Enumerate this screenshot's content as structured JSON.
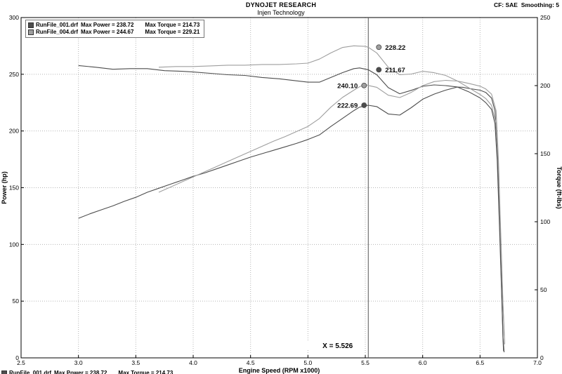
{
  "header": {
    "title": "DYNOJET RESEARCH",
    "subtitle": "Injen Technology",
    "correction": "CF: SAE  Smoothing: 5"
  },
  "legend": {
    "entries": [
      {
        "file": "RunFile_001.drf",
        "max_power_label": "Max Power = 238.72",
        "max_torque_label": "Max Torque = 214.73",
        "color": "#4d4d4d"
      },
      {
        "file": "RunFile_004.drf",
        "max_power_label": "Max Power = 244.67",
        "max_torque_label": "Max Torque = 229.21",
        "color": "#9e9e9e"
      }
    ]
  },
  "chart_data": {
    "type": "line",
    "title": "DYNOJET RESEARCH",
    "subtitle": "Injen Technology",
    "xlabel": "Engine Speed (RPM x1000)",
    "ylabel_left": "Power (hp)",
    "ylabel_right": "Torque (ft-lbs)",
    "xlim": [
      2.5,
      7.0
    ],
    "ylim_left": [
      0,
      300
    ],
    "ylim_right": [
      0,
      250
    ],
    "xticks": [
      2.5,
      3.0,
      3.5,
      4.0,
      4.5,
      5.0,
      5.5,
      6.0,
      6.5,
      7.0
    ],
    "yticks_left": [
      0,
      50,
      100,
      150,
      200,
      250,
      300
    ],
    "yticks_right": [
      0,
      50,
      100,
      150,
      200,
      250
    ],
    "grid": "dotted",
    "cursor_x": 5.526,
    "cursor_label": "X = 5.526",
    "series": [
      {
        "id": "power-001",
        "name": "RunFile_001.drf Power",
        "axis": "left",
        "color": "#4d4d4d",
        "points": [
          [
            3.0,
            123
          ],
          [
            3.1,
            127
          ],
          [
            3.2,
            130.5
          ],
          [
            3.3,
            134
          ],
          [
            3.4,
            138
          ],
          [
            3.5,
            141.5
          ],
          [
            3.6,
            146
          ],
          [
            3.7,
            149.5
          ],
          [
            3.8,
            153
          ],
          [
            3.9,
            156.5
          ],
          [
            4.0,
            160
          ],
          [
            4.1,
            163
          ],
          [
            4.2,
            166.5
          ],
          [
            4.3,
            170
          ],
          [
            4.4,
            173.5
          ],
          [
            4.5,
            177
          ],
          [
            4.6,
            180
          ],
          [
            4.7,
            183
          ],
          [
            4.8,
            186
          ],
          [
            4.9,
            189
          ],
          [
            5.0,
            192.5
          ],
          [
            5.1,
            196.5
          ],
          [
            5.2,
            204
          ],
          [
            5.3,
            211
          ],
          [
            5.4,
            218
          ],
          [
            5.45,
            221
          ],
          [
            5.526,
            222.69
          ],
          [
            5.6,
            221.5
          ],
          [
            5.7,
            215
          ],
          [
            5.8,
            214
          ],
          [
            5.9,
            220.5
          ],
          [
            6.0,
            228
          ],
          [
            6.1,
            232.5
          ],
          [
            6.2,
            236
          ],
          [
            6.3,
            238.72
          ],
          [
            6.35,
            238.5
          ],
          [
            6.4,
            237.5
          ],
          [
            6.5,
            236
          ],
          [
            6.55,
            234
          ],
          [
            6.6,
            229
          ],
          [
            6.63,
            218
          ],
          [
            6.65,
            185
          ],
          [
            6.67,
            120
          ],
          [
            6.69,
            55
          ],
          [
            6.7,
            18
          ],
          [
            6.71,
            5
          ]
        ]
      },
      {
        "id": "torque-001",
        "name": "RunFile_001.drf Torque",
        "axis": "right",
        "color": "#4d4d4d",
        "points": [
          [
            3.0,
            214.73
          ],
          [
            3.15,
            213.5
          ],
          [
            3.3,
            212
          ],
          [
            3.45,
            212.5
          ],
          [
            3.6,
            212.5
          ],
          [
            3.75,
            211
          ],
          [
            3.9,
            210.5
          ],
          [
            4.0,
            210
          ],
          [
            4.15,
            209
          ],
          [
            4.3,
            208
          ],
          [
            4.45,
            207.5
          ],
          [
            4.6,
            206
          ],
          [
            4.75,
            205
          ],
          [
            4.9,
            203.5
          ],
          [
            5.0,
            202.5
          ],
          [
            5.1,
            202.5
          ],
          [
            5.2,
            206
          ],
          [
            5.3,
            209.5
          ],
          [
            5.4,
            212.5
          ],
          [
            5.45,
            213
          ],
          [
            5.526,
            211.67
          ],
          [
            5.6,
            208
          ],
          [
            5.7,
            198.5
          ],
          [
            5.8,
            194
          ],
          [
            5.9,
            196.5
          ],
          [
            6.0,
            199.5
          ],
          [
            6.1,
            200.5
          ],
          [
            6.2,
            200
          ],
          [
            6.3,
            199
          ],
          [
            6.4,
            195.5
          ],
          [
            6.5,
            191
          ],
          [
            6.55,
            187.5
          ],
          [
            6.6,
            182.5
          ],
          [
            6.63,
            172
          ],
          [
            6.65,
            145
          ],
          [
            6.67,
            95
          ],
          [
            6.69,
            42
          ],
          [
            6.7,
            14
          ],
          [
            6.705,
            5
          ]
        ]
      },
      {
        "id": "power-004",
        "name": "RunFile_004.drf Power",
        "axis": "left",
        "color": "#9e9e9e",
        "points": [
          [
            3.7,
            146
          ],
          [
            3.8,
            150.5
          ],
          [
            3.9,
            155
          ],
          [
            4.0,
            159.5
          ],
          [
            4.1,
            164
          ],
          [
            4.2,
            168.5
          ],
          [
            4.3,
            173
          ],
          [
            4.4,
            177.5
          ],
          [
            4.5,
            182
          ],
          [
            4.6,
            186.5
          ],
          [
            4.7,
            191
          ],
          [
            4.8,
            195
          ],
          [
            4.9,
            199.5
          ],
          [
            5.0,
            204
          ],
          [
            5.1,
            211
          ],
          [
            5.2,
            221
          ],
          [
            5.3,
            229.5
          ],
          [
            5.4,
            236
          ],
          [
            5.45,
            239
          ],
          [
            5.5,
            241
          ],
          [
            5.526,
            240.1
          ],
          [
            5.6,
            238.5
          ],
          [
            5.7,
            231.5
          ],
          [
            5.8,
            229.5
          ],
          [
            5.9,
            234
          ],
          [
            6.0,
            240
          ],
          [
            6.1,
            243.5
          ],
          [
            6.2,
            244.67
          ],
          [
            6.3,
            244
          ],
          [
            6.35,
            243
          ],
          [
            6.4,
            242
          ],
          [
            6.5,
            239.5
          ],
          [
            6.55,
            237
          ],
          [
            6.6,
            232.5
          ],
          [
            6.64,
            218
          ],
          [
            6.66,
            175
          ],
          [
            6.68,
            112
          ],
          [
            6.7,
            48
          ],
          [
            6.715,
            12
          ]
        ]
      },
      {
        "id": "torque-004",
        "name": "RunFile_004.drf Torque",
        "axis": "right",
        "color": "#9e9e9e",
        "points": [
          [
            3.7,
            213.5
          ],
          [
            3.85,
            214
          ],
          [
            4.0,
            214
          ],
          [
            4.15,
            214.5
          ],
          [
            4.3,
            215
          ],
          [
            4.45,
            215
          ],
          [
            4.6,
            215.5
          ],
          [
            4.75,
            215.5
          ],
          [
            4.9,
            216
          ],
          [
            5.0,
            216.5
          ],
          [
            5.1,
            219.5
          ],
          [
            5.2,
            224
          ],
          [
            5.3,
            228
          ],
          [
            5.4,
            229.21
          ],
          [
            5.45,
            229
          ],
          [
            5.5,
            228.8
          ],
          [
            5.526,
            228.22
          ],
          [
            5.6,
            224
          ],
          [
            5.7,
            213.5
          ],
          [
            5.8,
            208
          ],
          [
            5.9,
            208.5
          ],
          [
            6.0,
            210.5
          ],
          [
            6.1,
            209.5
          ],
          [
            6.2,
            207.5
          ],
          [
            6.3,
            203.5
          ],
          [
            6.4,
            198.5
          ],
          [
            6.5,
            193.5
          ],
          [
            6.55,
            190.5
          ],
          [
            6.6,
            185.5
          ],
          [
            6.64,
            172
          ],
          [
            6.66,
            140
          ],
          [
            6.68,
            88
          ],
          [
            6.7,
            38
          ],
          [
            6.715,
            10
          ]
        ]
      }
    ],
    "markers": [
      {
        "label": "228.22",
        "value": 228.22,
        "axis": "right",
        "side": "right",
        "color": "#9e9e9e",
        "series": "torque-004"
      },
      {
        "label": "211.67",
        "value": 211.67,
        "axis": "right",
        "side": "right",
        "color": "#4d4d4d",
        "series": "torque-001"
      },
      {
        "label": "240.10",
        "value": 240.1,
        "axis": "left",
        "side": "left",
        "color": "#9e9e9e",
        "series": "power-004"
      },
      {
        "label": "222.69",
        "value": 222.69,
        "axis": "left",
        "side": "left",
        "color": "#4d4d4d",
        "series": "power-001"
      }
    ],
    "colors": {
      "run1": "#4d4d4d",
      "run2": "#9e9e9e",
      "grid": "#b5b5b5",
      "cursor": "#555555",
      "border": "#000000"
    }
  }
}
